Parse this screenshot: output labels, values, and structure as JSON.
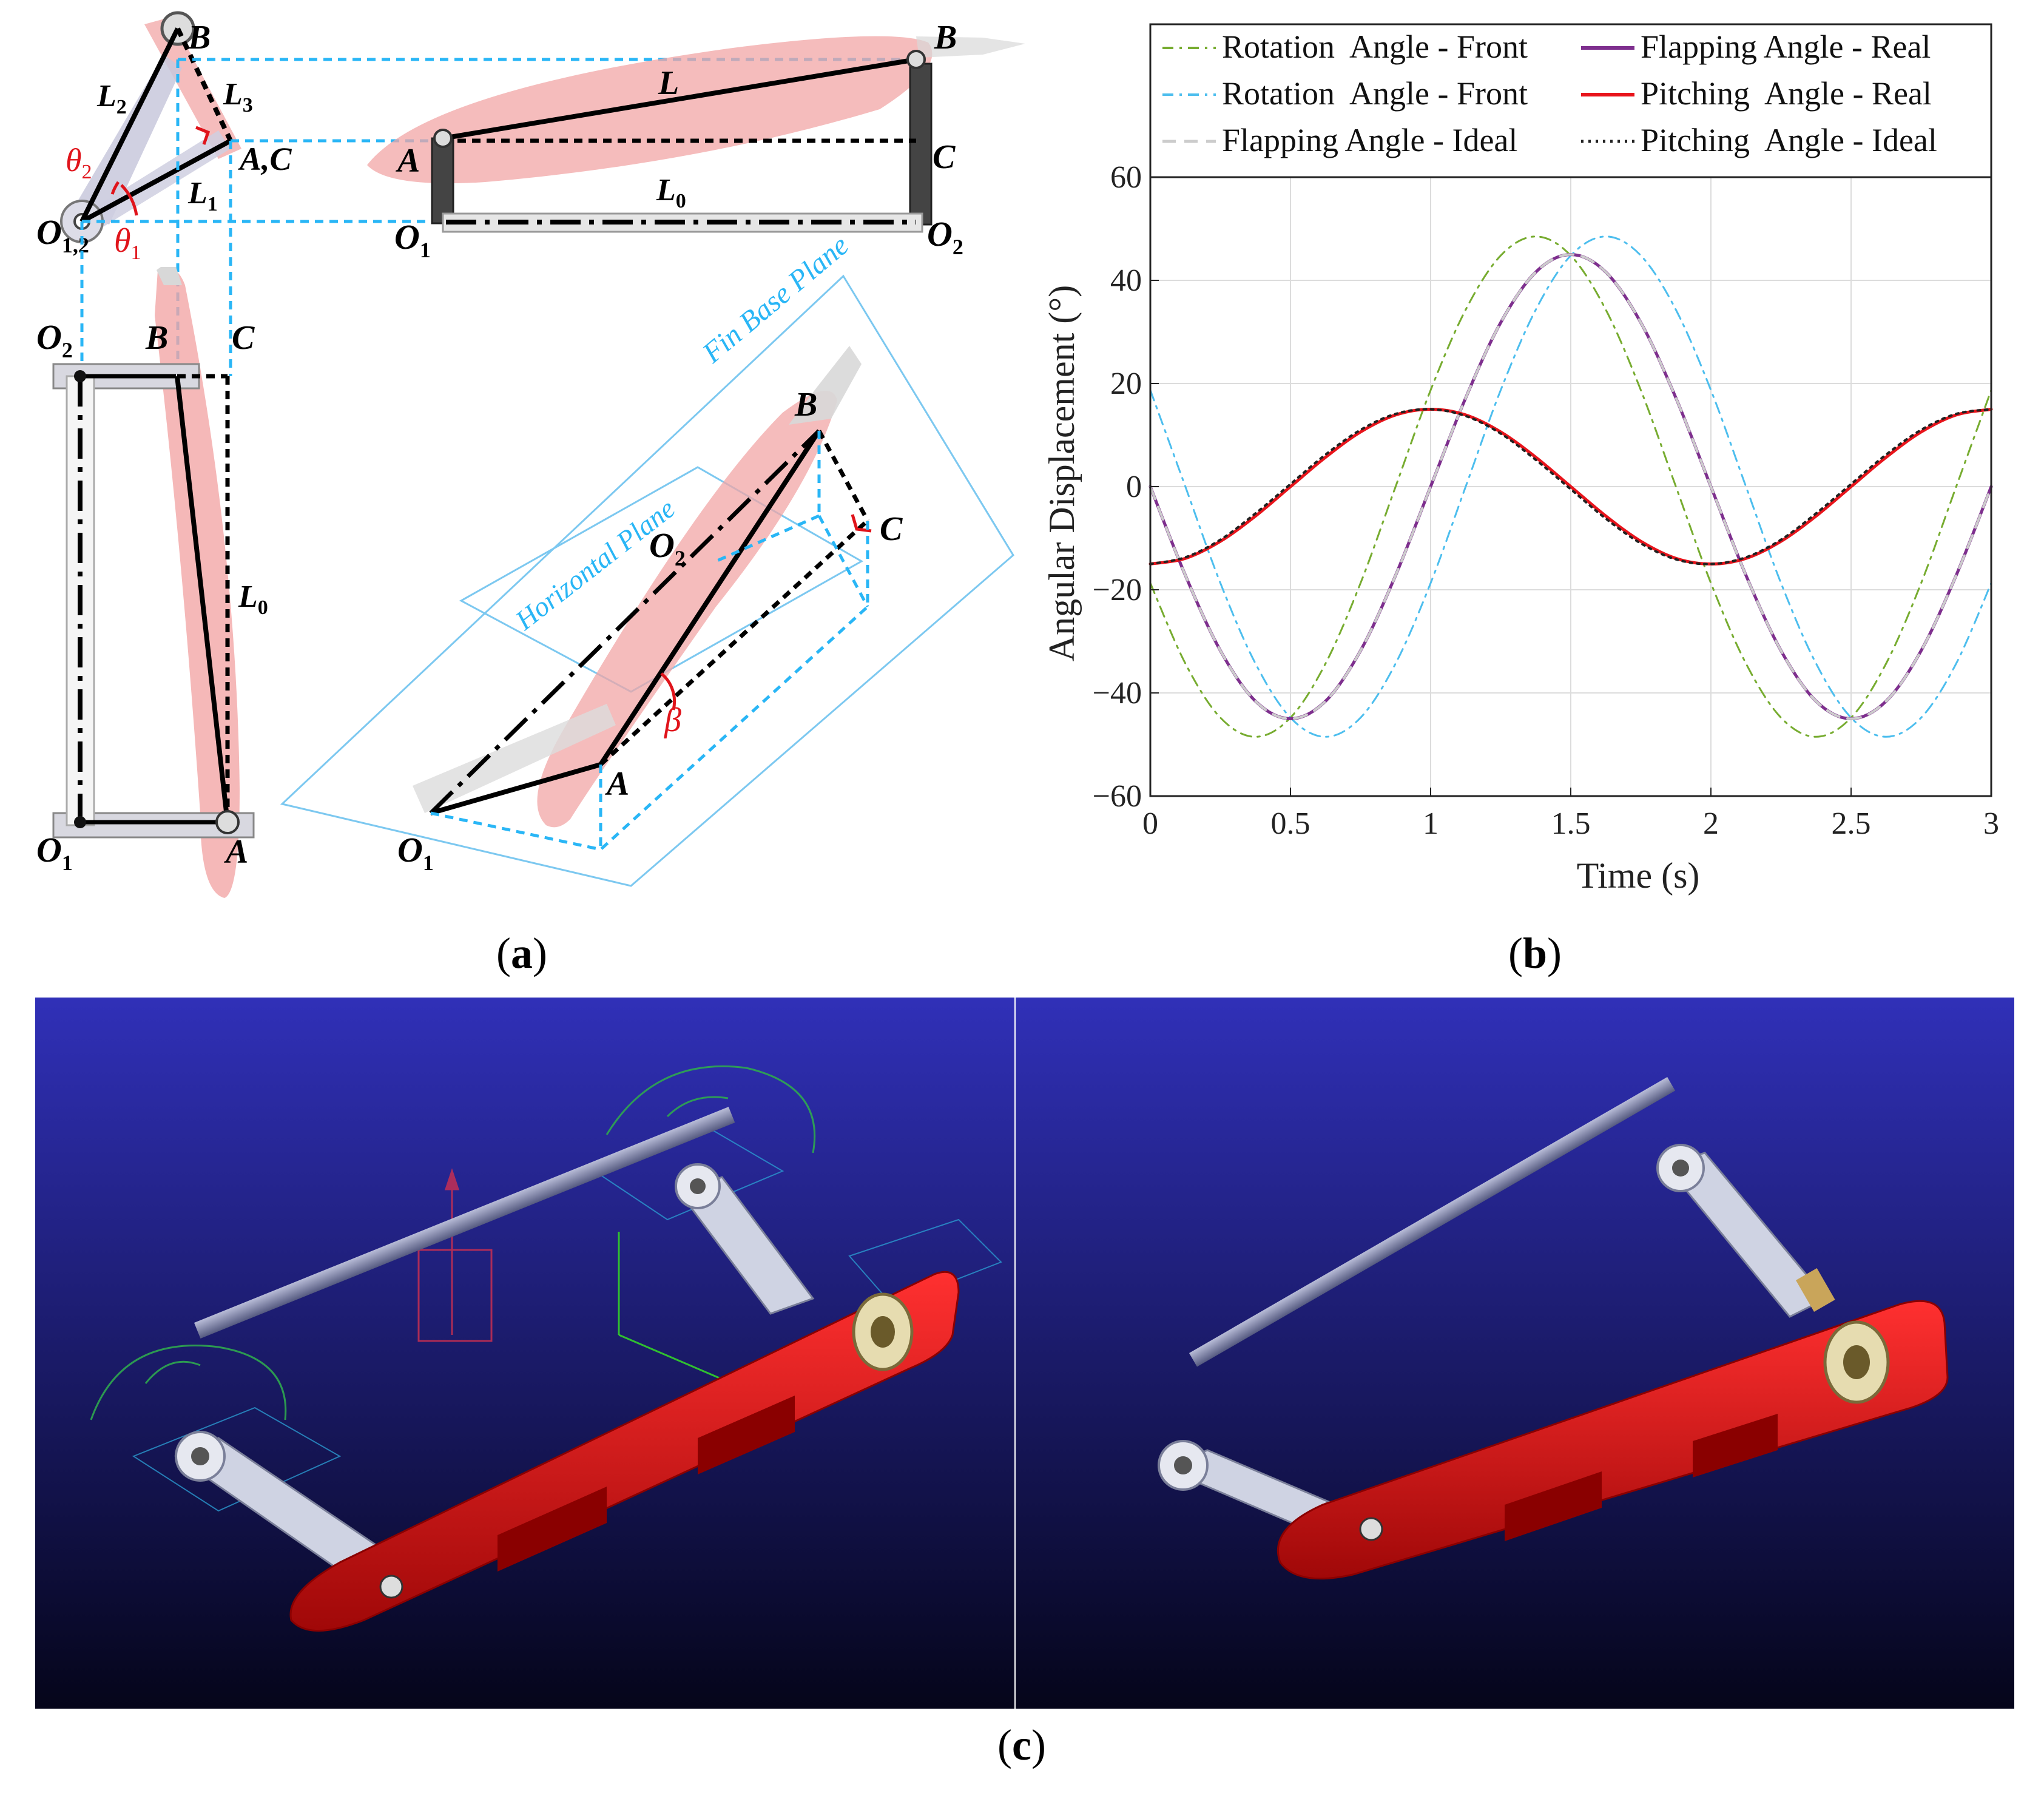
{
  "captions": {
    "a": "a",
    "b": "b",
    "c": "c"
  },
  "panel_a": {
    "side_view": {
      "B": "B",
      "L2": "L",
      "L2_sub": "2",
      "L3": "L",
      "L3_sub": "3",
      "AC": "A,C",
      "theta2": "θ",
      "theta2_sub": "2",
      "L1": "L",
      "L1_sub": "1",
      "O12": "O",
      "O12_sub": "1,2",
      "theta1": "θ",
      "theta1_sub": "1"
    },
    "top_view": {
      "B": "B",
      "L": "L",
      "A": "A",
      "C": "C",
      "L0": "L",
      "L0_sub": "0",
      "O1": "O",
      "O1_sub": "1",
      "O2": "O",
      "O2_sub": "2"
    },
    "front_view": {
      "O2": "O",
      "O2_sub": "2",
      "B": "B",
      "C": "C",
      "L0": "L",
      "L0_sub": "0",
      "O1": "O",
      "O1_sub": "1",
      "A": "A"
    },
    "iso_view": {
      "fin_base_plane": "Fin Base Plane",
      "horizontal_plane": "Horizontal Plane",
      "B": "B",
      "C": "C",
      "O2": "O",
      "O2_sub": "2",
      "beta": "β",
      "A": "A",
      "O1": "O",
      "O1_sub": "1"
    }
  },
  "chart_data": {
    "type": "line",
    "xlabel": "Time (s)",
    "ylabel": "Angular Displacement (°)",
    "xlim": [
      0,
      3
    ],
    "ylim": [
      -60,
      60
    ],
    "xticks": [
      0,
      0.5,
      1,
      1.5,
      2,
      2.5,
      3
    ],
    "xtick_labels": [
      "0",
      "0.5",
      "1",
      "1.5",
      "2",
      "2.5",
      "3"
    ],
    "yticks": [
      -60,
      -40,
      -20,
      0,
      20,
      40,
      60
    ],
    "ytick_labels": [
      "−60",
      "−40",
      "−20",
      "0",
      "20",
      "40",
      "60"
    ],
    "grid": true,
    "legend_position": "top",
    "series": [
      {
        "name": "Rotation  Angle - Front",
        "color": "#77ac30",
        "dash": "dashdot",
        "width": 3,
        "x": [
          0,
          0.125,
          0.25,
          0.375,
          0.5,
          0.625,
          0.75,
          0.875,
          1,
          1.125,
          1.25,
          1.375,
          1.5,
          1.625,
          1.75,
          1.875,
          2,
          2.125,
          2.25,
          2.375,
          2.5,
          2.625,
          2.75,
          2.875,
          3
        ],
        "y": [
          -18.7,
          -34.3,
          -44.8,
          -48.5,
          -44.8,
          -34.3,
          -18.7,
          0,
          18.7,
          34.3,
          44.8,
          48.5,
          44.8,
          34.3,
          18.7,
          0,
          -18.7,
          -34.3,
          -44.8,
          -48.5,
          -44.8,
          -34.3,
          -18.7,
          0,
          18.7
        ]
      },
      {
        "name": "Rotation  Angle - Front",
        "color": "#4dbeee",
        "dash": "dashdot",
        "width": 3,
        "x": [
          0,
          0.125,
          0.25,
          0.375,
          0.5,
          0.625,
          0.75,
          0.875,
          1,
          1.125,
          1.25,
          1.375,
          1.5,
          1.625,
          1.75,
          1.875,
          2,
          2.125,
          2.25,
          2.375,
          2.5,
          2.625,
          2.75,
          2.875,
          3
        ],
        "y": [
          18.7,
          0,
          -18.7,
          -34.3,
          -44.8,
          -48.5,
          -44.8,
          -34.3,
          -18.7,
          0,
          18.7,
          34.3,
          44.8,
          48.5,
          44.8,
          34.3,
          18.7,
          0,
          -18.7,
          -34.3,
          -44.8,
          -48.5,
          -44.8,
          -34.3,
          -18.7
        ]
      },
      {
        "name": "Flapping Angle - Ideal",
        "color": "#cccccc",
        "dash": "dashed",
        "width": 4,
        "x": [
          0,
          0.125,
          0.25,
          0.375,
          0.5,
          0.625,
          0.75,
          0.875,
          1,
          1.125,
          1.25,
          1.375,
          1.5,
          1.625,
          1.75,
          1.875,
          2,
          2.125,
          2.25,
          2.375,
          2.5,
          2.625,
          2.75,
          2.875,
          3
        ],
        "y": [
          0,
          -17.2,
          -31.8,
          -41.6,
          -45,
          -41.6,
          -31.8,
          -17.2,
          0,
          17.2,
          31.8,
          41.6,
          45,
          41.6,
          31.8,
          17.2,
          0,
          -17.2,
          -31.8,
          -41.6,
          -45,
          -41.6,
          -31.8,
          -17.2,
          0
        ]
      },
      {
        "name": "Flapping Angle - Real",
        "color": "#7e2f8e",
        "dash": "solid",
        "width": 5,
        "x": [
          0,
          0.125,
          0.25,
          0.375,
          0.5,
          0.625,
          0.75,
          0.875,
          1,
          1.125,
          1.25,
          1.375,
          1.5,
          1.625,
          1.75,
          1.875,
          2,
          2.125,
          2.25,
          2.375,
          2.5,
          2.625,
          2.75,
          2.875,
          3
        ],
        "y": [
          0,
          -17.2,
          -31.8,
          -41.6,
          -45,
          -41.6,
          -31.8,
          -17.2,
          0,
          17.2,
          31.8,
          41.6,
          45,
          41.6,
          31.8,
          17.2,
          0,
          -17.2,
          -31.8,
          -41.6,
          -45,
          -41.6,
          -31.8,
          -17.2,
          0
        ]
      },
      {
        "name": "Pitching  Angle - Real",
        "color": "#e8141b",
        "dash": "solid",
        "width": 5,
        "x": [
          0,
          0.125,
          0.25,
          0.375,
          0.5,
          0.625,
          0.75,
          0.875,
          1,
          1.125,
          1.25,
          1.375,
          1.5,
          1.625,
          1.75,
          1.875,
          2,
          2.125,
          2.25,
          2.375,
          2.5,
          2.625,
          2.75,
          2.875,
          3
        ],
        "y": [
          -15,
          -13.9,
          -10.6,
          -5.7,
          0,
          5.7,
          10.6,
          13.9,
          15,
          13.9,
          10.6,
          5.7,
          0,
          -5.7,
          -10.6,
          -13.9,
          -15,
          -13.9,
          -10.6,
          -5.7,
          0,
          5.7,
          10.6,
          13.9,
          15
        ]
      },
      {
        "name": "Pitching  Angle - Ideal",
        "color": "#222222",
        "dash": "dotted",
        "width": 4,
        "x": [
          0,
          0.125,
          0.25,
          0.375,
          0.5,
          0.625,
          0.75,
          0.875,
          1,
          1.125,
          1.25,
          1.375,
          1.5,
          1.625,
          1.75,
          1.875,
          2,
          2.125,
          2.25,
          2.375,
          2.5,
          2.625,
          2.75,
          2.875,
          3
        ],
        "y": [
          -15,
          -13.7,
          -10.3,
          -5.2,
          0.5,
          6.2,
          11,
          14.1,
          15,
          13.7,
          10.3,
          5.2,
          -0.5,
          -6.2,
          -11,
          -14.1,
          -15,
          -13.7,
          -10.3,
          -5.2,
          0.5,
          6.2,
          11,
          14.1,
          15
        ]
      }
    ]
  },
  "panel_c": {
    "background_top": "#3030b8",
    "background_bottom": "#05051a",
    "fin_color": "#e01414"
  }
}
